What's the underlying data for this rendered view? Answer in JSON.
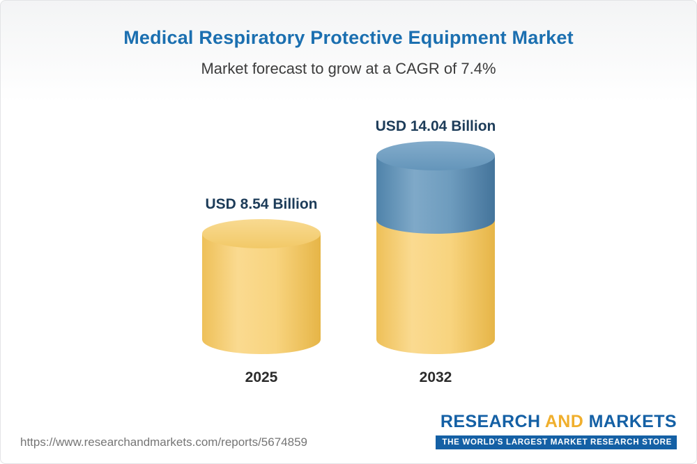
{
  "header": {
    "title": "Medical Respiratory Protective Equipment Market",
    "subtitle": "Market forecast to grow at a CAGR of 7.4%"
  },
  "chart_data": {
    "type": "bar",
    "title": "Medical Respiratory Protective Equipment Market",
    "subtitle": "Market forecast to grow at a CAGR of 7.4%",
    "categories": [
      "2025",
      "2032"
    ],
    "values": [
      8.54,
      14.04
    ],
    "value_labels": [
      "USD 8.54 Billion",
      "USD 14.04 Billion"
    ],
    "unit": "USD Billion",
    "cagr": "7.4%",
    "grid": false,
    "legend": "none",
    "colors": {
      "base": "#F2C763",
      "growth": "#5C8FB5",
      "title": "#1B6FB0"
    }
  },
  "footer": {
    "url": "https://www.researchandmarkets.com/reports/5674859",
    "logo": {
      "research": "RESEARCH",
      "and": "AND",
      "markets": "MARKETS",
      "tagline": "THE WORLD'S LARGEST MARKET RESEARCH STORE"
    }
  }
}
